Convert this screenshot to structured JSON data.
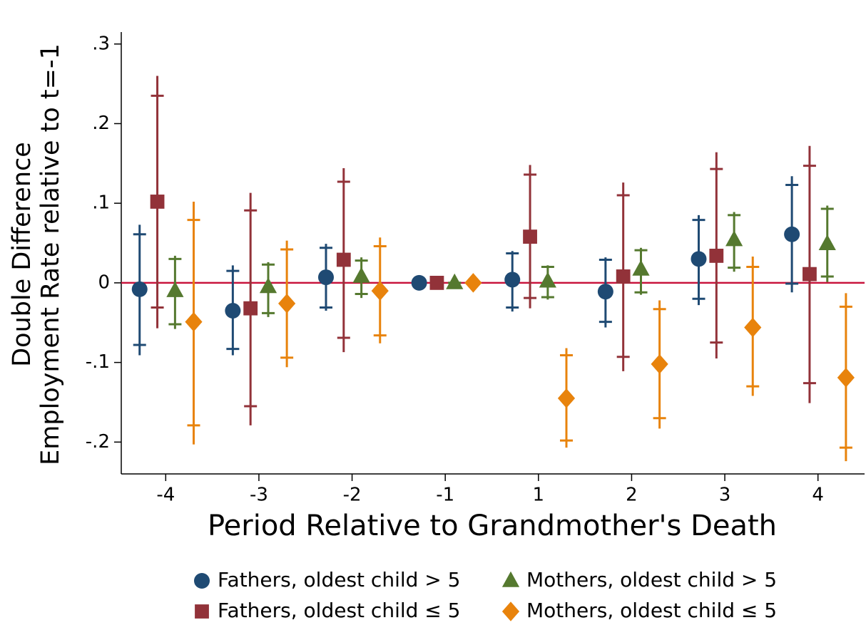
{
  "chart_data": {
    "type": "errorbar",
    "xlabel": "Period Relative to Grandmother's Death",
    "ylabel": [
      "Double Difference",
      "Employment Rate relative to t=-1"
    ],
    "categories": [
      "-4",
      "-3",
      "-2",
      "-1",
      "1",
      "2",
      "3",
      "4"
    ],
    "ylim": [
      -0.24,
      0.315
    ],
    "yticks": [
      {
        "value": -0.2,
        "label": "-.2"
      },
      {
        "value": -0.1,
        "label": "-.1"
      },
      0,
      {
        "value": 0.1,
        "label": ".1"
      },
      {
        "value": 0.2,
        "label": ".2"
      },
      {
        "value": 0.3,
        "label": ".3"
      }
    ],
    "reference_line": {
      "value": 0,
      "color": "#c8143c"
    },
    "series": [
      {
        "name": "Fathers, oldest child > 5",
        "color": "#1f4a73",
        "marker": "circle",
        "values": [
          -0.008,
          -0.035,
          0.007,
          0,
          0.004,
          -0.011,
          0.03,
          0.061
        ],
        "ci95_low": [
          -0.091,
          -0.091,
          -0.035,
          0,
          -0.036,
          -0.056,
          -0.028,
          -0.012
        ],
        "ci95_high": [
          0.073,
          0.022,
          0.049,
          0,
          0.04,
          0.032,
          0.085,
          0.134
        ],
        "ci90_low": [
          -0.078,
          -0.083,
          -0.031,
          0,
          -0.031,
          -0.049,
          -0.02,
          -0.001
        ],
        "ci90_high": [
          0.061,
          0.015,
          0.044,
          0,
          0.037,
          0.029,
          0.079,
          0.123
        ]
      },
      {
        "name": "Fathers, oldest child ≤ 5",
        "color": "#923239",
        "marker": "square",
        "values": [
          0.102,
          -0.032,
          0.029,
          0,
          0.058,
          0.008,
          0.034,
          0.011
        ],
        "ci95_low": [
          -0.057,
          -0.179,
          -0.087,
          0,
          -0.032,
          -0.111,
          -0.095,
          -0.151
        ],
        "ci95_high": [
          0.26,
          0.113,
          0.144,
          0,
          0.148,
          0.126,
          0.164,
          0.172
        ],
        "ci90_low": [
          -0.031,
          -0.155,
          -0.069,
          0,
          -0.019,
          -0.093,
          -0.075,
          -0.126
        ],
        "ci90_high": [
          0.235,
          0.091,
          0.127,
          0,
          0.136,
          0.11,
          0.143,
          0.147
        ]
      },
      {
        "name": "Mothers, oldest child > 5",
        "color": "#55792f",
        "marker": "triangle",
        "values": [
          -0.01,
          -0.005,
          0.008,
          0,
          0.002,
          0.017,
          0.054,
          0.049
        ],
        "ci95_low": [
          -0.058,
          -0.043,
          -0.019,
          0,
          -0.021,
          -0.015,
          0.014,
          0.001
        ],
        "ci95_high": [
          0.034,
          0.026,
          0.032,
          0,
          0.022,
          0.044,
          0.089,
          0.097
        ],
        "ci90_low": [
          -0.052,
          -0.038,
          -0.014,
          0,
          -0.018,
          -0.012,
          0.019,
          0.008
        ],
        "ci90_high": [
          0.03,
          0.023,
          0.028,
          0,
          0.02,
          0.041,
          0.085,
          0.093
        ]
      },
      {
        "name": "Mothers, oldest child ≤ 5",
        "color": "#e8830c",
        "marker": "diamond",
        "values": [
          -0.049,
          -0.026,
          -0.01,
          0,
          -0.145,
          -0.102,
          -0.056,
          -0.119
        ],
        "ci95_low": [
          -0.203,
          -0.106,
          -0.076,
          0,
          -0.207,
          -0.183,
          -0.142,
          -0.224
        ],
        "ci95_high": [
          0.102,
          0.053,
          0.057,
          0,
          -0.082,
          -0.022,
          0.033,
          -0.013
        ],
        "ci90_low": [
          -0.179,
          -0.094,
          -0.066,
          0,
          -0.198,
          -0.17,
          -0.13,
          -0.207
        ],
        "ci90_high": [
          0.079,
          0.042,
          0.046,
          0,
          -0.091,
          -0.033,
          0.02,
          -0.03
        ]
      }
    ]
  }
}
